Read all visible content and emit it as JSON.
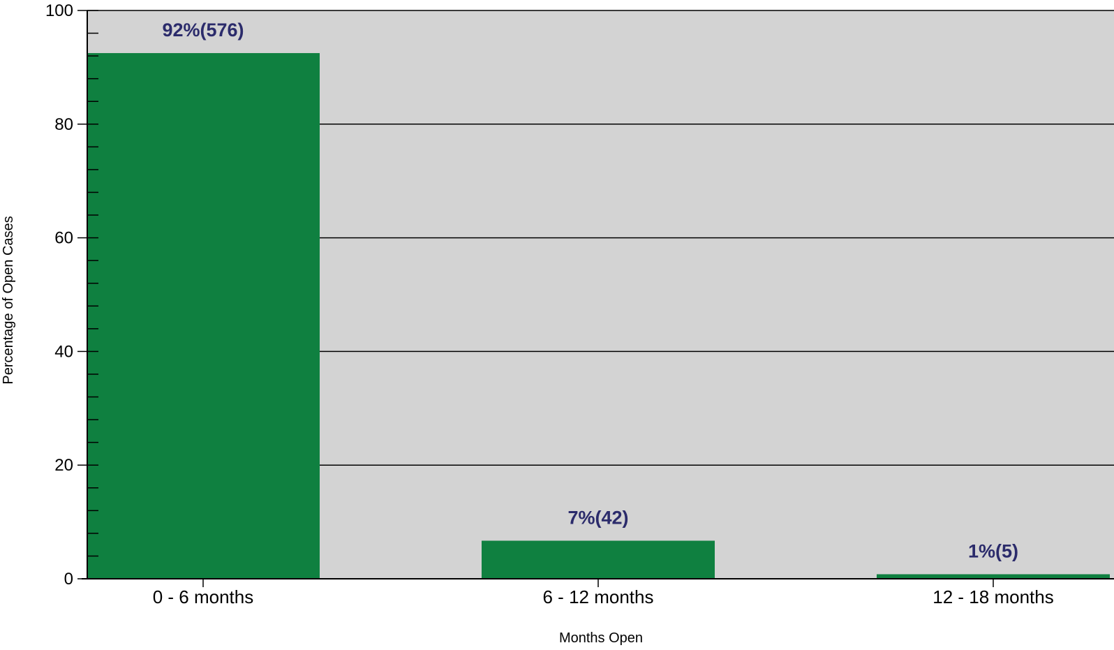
{
  "chart_data": {
    "type": "bar",
    "categories": [
      "0 - 6 months",
      "6 - 12 months",
      "12 - 18 months"
    ],
    "values": [
      92.5,
      6.7,
      0.8
    ],
    "data_labels": [
      "92%(576)",
      "7%(42)",
      "1%(5)"
    ],
    "title": "",
    "xlabel": "Months Open",
    "ylabel": "Percentage of Open Cases",
    "ylim": [
      0,
      100
    ],
    "yticks": [
      0,
      20,
      40,
      60,
      80,
      100
    ],
    "ytick_labels": [
      "0",
      "20",
      "40",
      "60",
      "80",
      "100"
    ],
    "minor_tick_step": 4,
    "grid": "horizontal major",
    "legend": "none",
    "colors": {
      "bar": "#0f8040",
      "plot_background": "#d3d3d3",
      "data_label": "#2b2b6b",
      "grid": "#000000"
    }
  }
}
